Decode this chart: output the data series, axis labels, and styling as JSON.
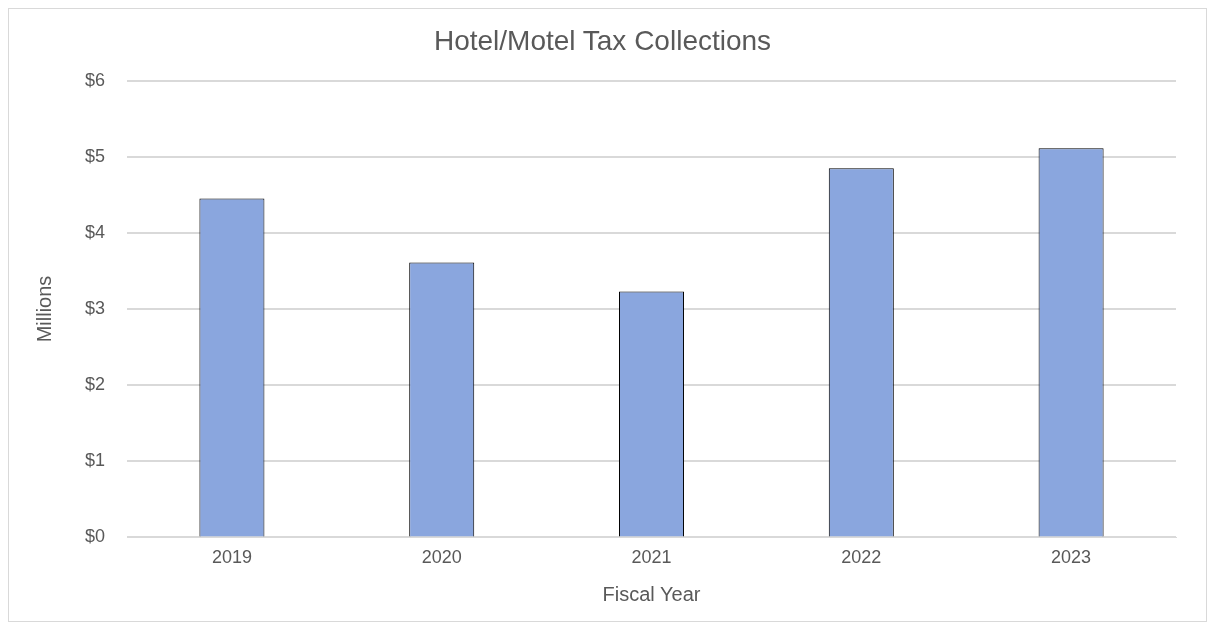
{
  "chart_data": {
    "type": "bar",
    "title": "Hotel/Motel Tax Collections",
    "xlabel": "Fiscal Year",
    "ylabel": "Millions",
    "categories": [
      "2019",
      "2020",
      "2021",
      "2022",
      "2023"
    ],
    "values": [
      4.45,
      3.61,
      3.23,
      4.85,
      5.11
    ],
    "color": "#8aa6de",
    "ylim": [
      0,
      6
    ],
    "yticks": [
      {
        "value": 0,
        "label": "$0"
      },
      {
        "value": 1,
        "label": "$1"
      },
      {
        "value": 2,
        "label": "$2"
      },
      {
        "value": 3,
        "label": "$3"
      },
      {
        "value": 4,
        "label": "$4"
      },
      {
        "value": 5,
        "label": "$5"
      },
      {
        "value": 6,
        "label": "$6"
      }
    ],
    "grid": "y",
    "legend": false
  }
}
